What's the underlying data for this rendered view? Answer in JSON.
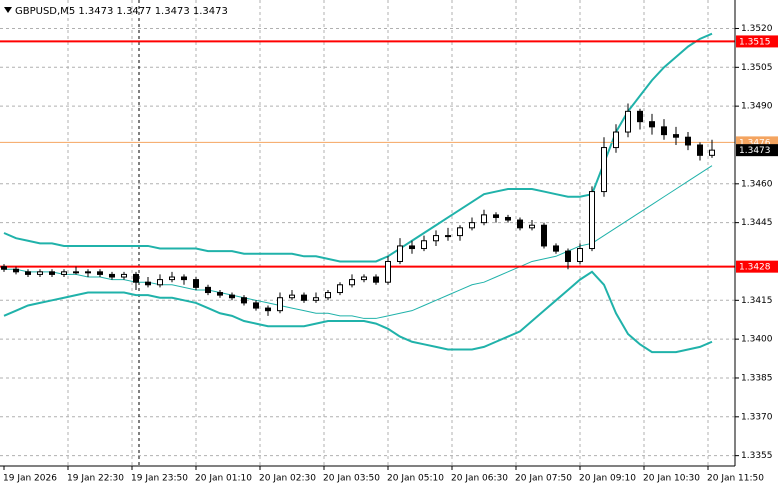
{
  "chart_data": {
    "type": "candlestick",
    "title": "GBPUSD,M5  1.3473 1.3477 1.3473 1.3473",
    "open": [
      1.3428,
      1.3427,
      1.3426,
      1.3425,
      1.3426,
      1.3425,
      1.3426,
      1.3426,
      1.3426,
      1.3425,
      1.3424,
      1.3425,
      1.3422,
      1.3421,
      1.3423,
      1.3424,
      1.3423,
      1.342,
      1.3418,
      1.3417,
      1.3416,
      1.3414,
      1.3412,
      1.3411,
      1.3416,
      1.3417,
      1.3415,
      1.3416,
      1.3418,
      1.3421,
      1.3423,
      1.3424,
      1.3422,
      1.343,
      1.3436,
      1.3435,
      1.3438,
      1.344,
      1.344,
      1.3443,
      1.3445,
      1.3448,
      1.3447,
      1.3446,
      1.3443,
      1.3444,
      1.3436,
      1.3434,
      1.343,
      1.3435,
      1.3457,
      1.3474,
      1.348,
      1.3488,
      1.3484,
      1.3482,
      1.3479,
      1.3478,
      1.3475,
      1.3471
    ],
    "high": [
      1.3429,
      1.3428,
      1.3427,
      1.3427,
      1.3427,
      1.3427,
      1.3428,
      1.3427,
      1.3427,
      1.3426,
      1.3426,
      1.3426,
      1.3424,
      1.3425,
      1.3426,
      1.3425,
      1.3424,
      1.3421,
      1.3419,
      1.3418,
      1.3417,
      1.3415,
      1.3413,
      1.3418,
      1.3419,
      1.3418,
      1.3418,
      1.3419,
      1.3422,
      1.3425,
      1.3425,
      1.3425,
      1.3432,
      1.3439,
      1.3438,
      1.344,
      1.3442,
      1.3443,
      1.3444,
      1.3447,
      1.345,
      1.3449,
      1.3448,
      1.3447,
      1.3446,
      1.3445,
      1.3437,
      1.3435,
      1.3437,
      1.3459,
      1.3478,
      1.3483,
      1.3491,
      1.3489,
      1.3487,
      1.3485,
      1.3482,
      1.348,
      1.3476,
      1.3477
    ],
    "low": [
      1.3426,
      1.3425,
      1.3424,
      1.3424,
      1.3424,
      1.3424,
      1.3425,
      1.3424,
      1.3424,
      1.3423,
      1.3423,
      1.3419,
      1.342,
      1.342,
      1.3422,
      1.3421,
      1.3419,
      1.3417,
      1.3416,
      1.3415,
      1.3413,
      1.3411,
      1.3409,
      1.341,
      1.3415,
      1.3414,
      1.3414,
      1.3415,
      1.3417,
      1.342,
      1.3422,
      1.3421,
      1.3421,
      1.3429,
      1.3433,
      1.3434,
      1.3436,
      1.3438,
      1.3438,
      1.3442,
      1.3444,
      1.3445,
      1.3445,
      1.3442,
      1.3442,
      1.3435,
      1.3433,
      1.3427,
      1.3429,
      1.3434,
      1.3455,
      1.3472,
      1.3478,
      1.3481,
      1.3479,
      1.3477,
      1.3475,
      1.3473,
      1.3469,
      1.347
    ],
    "close": [
      1.3427,
      1.3426,
      1.3425,
      1.3426,
      1.3425,
      1.3426,
      1.3426,
      1.3426,
      1.3425,
      1.3424,
      1.3425,
      1.3422,
      1.3421,
      1.3423,
      1.3424,
      1.3423,
      1.342,
      1.3418,
      1.3417,
      1.3416,
      1.3414,
      1.3412,
      1.3411,
      1.3416,
      1.3417,
      1.3415,
      1.3416,
      1.3418,
      1.3421,
      1.3423,
      1.3424,
      1.3422,
      1.343,
      1.3436,
      1.3435,
      1.3438,
      1.344,
      1.344,
      1.3443,
      1.3445,
      1.3448,
      1.3447,
      1.3446,
      1.3443,
      1.3444,
      1.3436,
      1.3434,
      1.343,
      1.3435,
      1.3457,
      1.3474,
      1.348,
      1.3488,
      1.3484,
      1.3482,
      1.3479,
      1.3478,
      1.3475,
      1.3471,
      1.3473
    ],
    "series": [
      {
        "color": "#20b2aa",
        "values": [
          1.3441,
          1.3439,
          1.3438,
          1.3437,
          1.3437,
          1.3436,
          1.3436,
          1.3436,
          1.3436,
          1.3436,
          1.3436,
          1.3436,
          1.3436,
          1.3435,
          1.3435,
          1.3435,
          1.3435,
          1.3434,
          1.3434,
          1.3434,
          1.3433,
          1.3433,
          1.3433,
          1.3433,
          1.3433,
          1.3432,
          1.3432,
          1.3431,
          1.343,
          1.343,
          1.343,
          1.343,
          1.3432,
          1.3435,
          1.3438,
          1.3441,
          1.3444,
          1.3447,
          1.345,
          1.3453,
          1.3456,
          1.3457,
          1.3458,
          1.3458,
          1.3458,
          1.3457,
          1.3456,
          1.3455,
          1.3455,
          1.3456,
          1.3468,
          1.348,
          1.3488,
          1.3494,
          1.35,
          1.3505,
          1.3509,
          1.3513,
          1.3516,
          1.3518
        ]
      },
      {
        "color": "#20b2aa",
        "values": [
          1.3427,
          1.3427,
          1.3426,
          1.3426,
          1.3426,
          1.3425,
          1.3425,
          1.3424,
          1.3424,
          1.3423,
          1.3423,
          1.3422,
          1.3422,
          1.3421,
          1.3421,
          1.342,
          1.3419,
          1.3419,
          1.3418,
          1.3417,
          1.3416,
          1.3415,
          1.3414,
          1.3413,
          1.3412,
          1.3411,
          1.341,
          1.341,
          1.3409,
          1.3409,
          1.3408,
          1.3408,
          1.3409,
          1.341,
          1.3411,
          1.3413,
          1.3415,
          1.3417,
          1.3419,
          1.3421,
          1.3422,
          1.3424,
          1.3426,
          1.3428,
          1.343,
          1.3431,
          1.3432,
          1.3434,
          1.3436,
          1.3437,
          1.344,
          1.3443,
          1.3446,
          1.3449,
          1.3452,
          1.3455,
          1.3458,
          1.3461,
          1.3464,
          1.3467
        ]
      },
      {
        "color": "#20b2aa",
        "values": [
          1.3409,
          1.3411,
          1.3413,
          1.3414,
          1.3415,
          1.3416,
          1.3417,
          1.3418,
          1.3418,
          1.3418,
          1.3418,
          1.3417,
          1.3417,
          1.3416,
          1.3416,
          1.3415,
          1.3414,
          1.3412,
          1.341,
          1.3409,
          1.3407,
          1.3406,
          1.3405,
          1.3405,
          1.3405,
          1.3405,
          1.3406,
          1.3407,
          1.3407,
          1.3407,
          1.3407,
          1.3406,
          1.3404,
          1.3401,
          1.3399,
          1.3398,
          1.3397,
          1.3396,
          1.3396,
          1.3396,
          1.3397,
          1.3399,
          1.3401,
          1.3403,
          1.3407,
          1.3411,
          1.3415,
          1.3419,
          1.3423,
          1.3426,
          1.3421,
          1.341,
          1.3402,
          1.3398,
          1.3395,
          1.3395,
          1.3395,
          1.3396,
          1.3397,
          1.3399
        ]
      }
    ],
    "levels": [
      {
        "value": 1.3515,
        "color": "#ff0000"
      },
      {
        "value": 1.3428,
        "color": "#ff0000"
      },
      {
        "value": 1.3476,
        "color": "#f4a460"
      }
    ],
    "last_price": 1.3473,
    "x_labels": [
      "19 Jan 2026",
      "19 Jan 22:30",
      "19 Jan 23:50",
      "20 Jan 01:10",
      "20 Jan 02:30",
      "20 Jan 03:50",
      "20 Jan 05:10",
      "20 Jan 06:30",
      "20 Jan 07:50",
      "20 Jan 09:10",
      "20 Jan 10:30",
      "20 Jan 11:50"
    ],
    "ylim": [
      1.3351,
      1.3531
    ],
    "yticks": [
      {
        "value": 1.352,
        "label": "1.3520"
      },
      1.3505,
      {
        "value": 1.349,
        "label": "1.3490"
      },
      {
        "value": 1.346,
        "label": "1.3460"
      },
      1.3445,
      1.3415,
      {
        "value": 1.34,
        "label": "1.3400"
      },
      1.3385,
      {
        "value": 1.337,
        "label": "1.3370"
      },
      1.3355
    ],
    "grid": true
  }
}
